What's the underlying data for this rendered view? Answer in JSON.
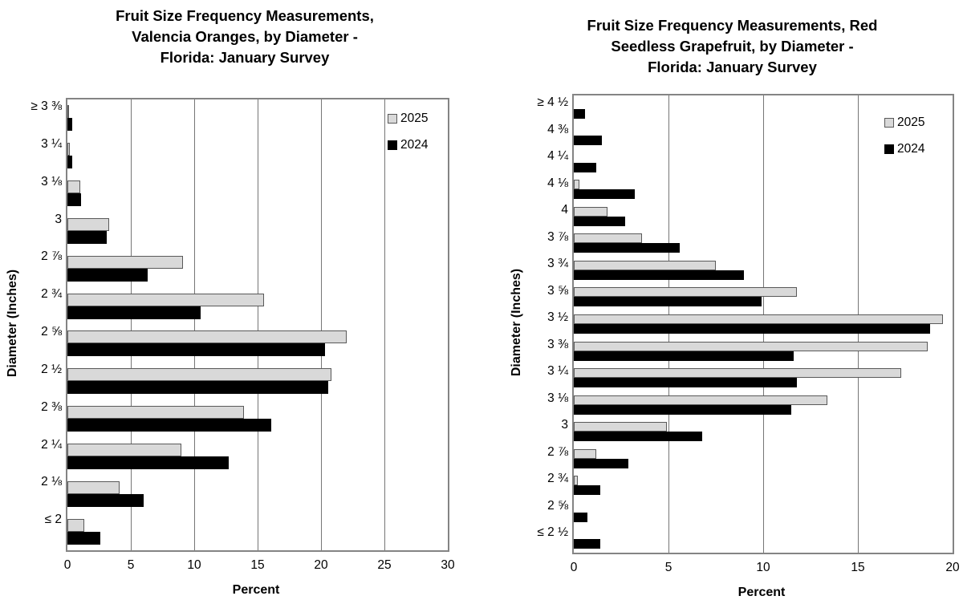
{
  "page": {
    "background": "#ffffff"
  },
  "chart_data": [
    {
      "type": "bar",
      "orientation": "horizontal",
      "title": "Fruit Size Frequency Measurements, Valencia Oranges, by Diameter - Florida: January Survey",
      "title_lines": [
        "Fruit Size Frequency Measurements,",
        "Valencia Oranges, by Diameter -",
        "Florida: January Survey"
      ],
      "categories": [
        "≥ 3 ⅜",
        "3 ¼",
        "3 ⅛",
        "3",
        "2 ⅞",
        "2 ¾",
        "2 ⅝",
        "2 ½",
        "2 ⅜",
        "2 ¼",
        "2 ⅛",
        "≤ 2"
      ],
      "series": [
        {
          "name": "2025",
          "color": "#d9d9d9",
          "border_color": "#595959",
          "values": [
            0.1,
            0.2,
            1.0,
            3.3,
            9.1,
            15.5,
            22.0,
            20.8,
            13.9,
            9.0,
            4.1,
            1.3
          ]
        },
        {
          "name": "2024",
          "color": "#000000",
          "border_color": "#000000",
          "values": [
            0.4,
            0.4,
            1.1,
            3.1,
            6.3,
            10.5,
            20.3,
            20.6,
            16.1,
            12.7,
            6.0,
            2.6
          ]
        }
      ],
      "xlabel": "Percent",
      "ylabel": "Diameter (Inches)",
      "xlim": [
        0,
        30
      ],
      "xticks": [
        0,
        5,
        10,
        15,
        20,
        25,
        30
      ],
      "grid": true,
      "legend_position": "top-right"
    },
    {
      "type": "bar",
      "orientation": "horizontal",
      "title": "Fruit Size Frequency Measurements, Red Seedless Grapefruit, by Diameter - Florida: January Survey",
      "title_lines": [
        "Fruit Size Frequency Measurements, Red",
        "Seedless Grapefruit, by Diameter -",
        "Florida: January Survey"
      ],
      "categories": [
        "≥ 4 ½",
        "4 ⅜",
        "4 ¼",
        "4 ⅛",
        "4",
        "3 ⅞",
        "3 ¾",
        "3 ⅝",
        "3 ½",
        "3 ⅜",
        "3 ¼",
        "3 ⅛",
        "3",
        "2 ⅞",
        "2 ¾",
        "2 ⅝",
        "≤ 2 ½"
      ],
      "series": [
        {
          "name": "2025",
          "color": "#d9d9d9",
          "border_color": "#595959",
          "values": [
            0.0,
            0.0,
            0.0,
            0.3,
            1.8,
            3.6,
            7.5,
            11.8,
            19.5,
            18.7,
            17.3,
            13.4,
            4.9,
            1.2,
            0.2,
            0.0,
            0.0
          ]
        },
        {
          "name": "2024",
          "color": "#000000",
          "border_color": "#000000",
          "values": [
            0.6,
            1.5,
            1.2,
            3.2,
            2.7,
            5.6,
            9.0,
            9.9,
            18.8,
            11.6,
            11.8,
            11.5,
            6.8,
            2.9,
            1.4,
            0.7,
            1.4
          ]
        }
      ],
      "xlabel": "Percent",
      "ylabel": "Diameter (Inches)",
      "xlim": [
        0,
        20
      ],
      "xticks": [
        0,
        5,
        10,
        15,
        20
      ],
      "grid": true,
      "legend_position": "top-right"
    }
  ]
}
